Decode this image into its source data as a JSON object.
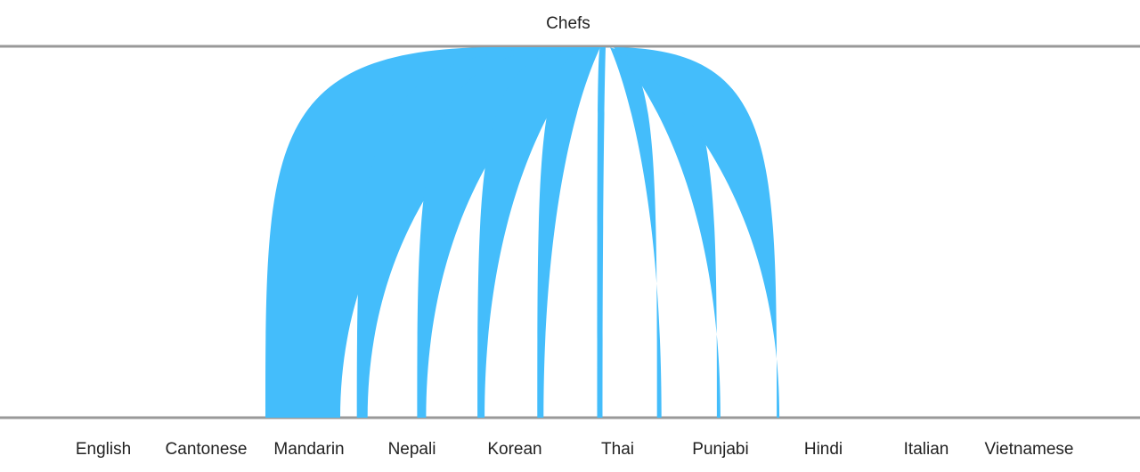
{
  "chart_data": {
    "type": "sankey",
    "source": {
      "label": "Chefs"
    },
    "targets": [
      {
        "label": "English",
        "value": 0
      },
      {
        "label": "Cantonese",
        "value": 0
      },
      {
        "label": "Mandarin",
        "value": 42
      },
      {
        "label": "Nepali",
        "value": 6
      },
      {
        "label": "Korean",
        "value": 5
      },
      {
        "label": "Thai",
        "value": 4
      },
      {
        "label": "Punjabi",
        "value": 3.5
      },
      {
        "label": "Hindi",
        "value": 3
      },
      {
        "label": "Italian",
        "value": 2.5
      },
      {
        "label": "Vietnamese",
        "value": 2
      },
      {
        "label": "",
        "value": 1.5
      }
    ],
    "colors": {
      "link": "#44bdfb",
      "axis_line": "#999999",
      "text": "#222222"
    },
    "xlabel": "",
    "ylabel": ""
  }
}
